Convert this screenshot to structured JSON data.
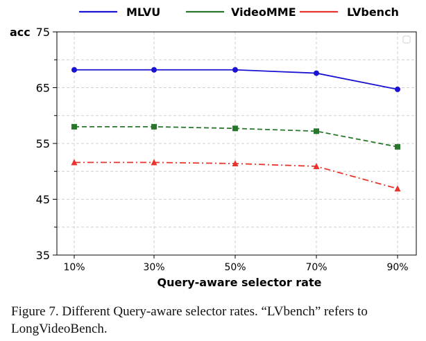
{
  "chart_data": {
    "type": "line",
    "categories": [
      "10%",
      "30%",
      "50%",
      "70%",
      "90%"
    ],
    "series": [
      {
        "name": "MLVU",
        "values": [
          68.2,
          68.2,
          68.2,
          67.6,
          64.7
        ],
        "color": "#1a13d4",
        "dash": "solid",
        "marker": "circle"
      },
      {
        "name": "VideoMME",
        "values": [
          58.0,
          58.0,
          57.7,
          57.2,
          54.4
        ],
        "color": "#27762b",
        "dash": "dashed",
        "marker": "square"
      },
      {
        "name": "LVbench",
        "values": [
          51.6,
          51.6,
          51.4,
          50.9,
          46.9
        ],
        "color": "#e8342c",
        "dash": "dashdot",
        "marker": "triangle"
      }
    ],
    "xlabel": "Query-aware selector rate",
    "ylabel": "acc",
    "ylim": [
      35,
      75
    ],
    "yticks": [
      35,
      45,
      55,
      65,
      75
    ],
    "grid": true,
    "legend_position": "top"
  },
  "caption": "Figure 7. Different Query-aware selector rates. “LVbench” refers to LongVideoBench."
}
